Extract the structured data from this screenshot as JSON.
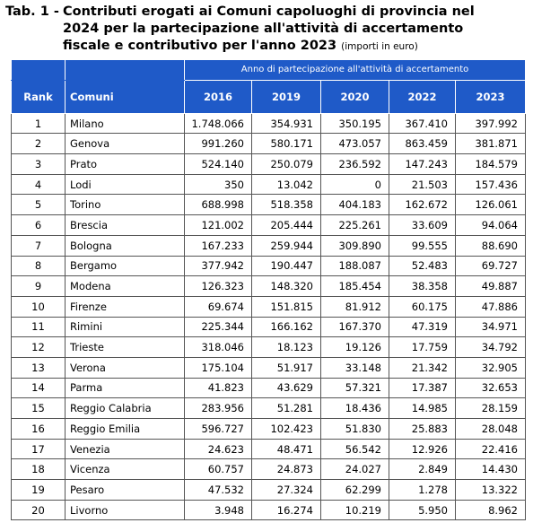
{
  "header": {
    "label": "Tab. 1 -",
    "title": "Contributi erogati ai Comuni capoluoghi di provincia nel 2024 per la partecipazione all'attività di accertamento fiscale e contributivo per l'anno 2023",
    "note": "(importi in euro)"
  },
  "table": {
    "group_header": "Anno di partecipazione all'attività di accertamento",
    "columns": [
      "Rank",
      "Comuni",
      "2016",
      "2019",
      "2020",
      "2022",
      "2023"
    ],
    "rows": [
      [
        "1",
        "Milano",
        "1.748.066",
        "354.931",
        "350.195",
        "367.410",
        "397.992"
      ],
      [
        "2",
        "Genova",
        "991.260",
        "580.171",
        "473.057",
        "863.459",
        "381.871"
      ],
      [
        "3",
        "Prato",
        "524.140",
        "250.079",
        "236.592",
        "147.243",
        "184.579"
      ],
      [
        "4",
        "Lodi",
        "350",
        "13.042",
        "0",
        "21.503",
        "157.436"
      ],
      [
        "5",
        "Torino",
        "688.998",
        "518.358",
        "404.183",
        "162.672",
        "126.061"
      ],
      [
        "6",
        "Brescia",
        "121.002",
        "205.444",
        "225.261",
        "33.609",
        "94.064"
      ],
      [
        "7",
        "Bologna",
        "167.233",
        "259.944",
        "309.890",
        "99.555",
        "88.690"
      ],
      [
        "8",
        "Bergamo",
        "377.942",
        "190.447",
        "188.087",
        "52.483",
        "69.727"
      ],
      [
        "9",
        "Modena",
        "126.323",
        "148.320",
        "185.454",
        "38.358",
        "49.887"
      ],
      [
        "10",
        "Firenze",
        "69.674",
        "151.815",
        "81.912",
        "60.175",
        "47.886"
      ],
      [
        "11",
        "Rimini",
        "225.344",
        "166.162",
        "167.370",
        "47.319",
        "34.971"
      ],
      [
        "12",
        "Trieste",
        "318.046",
        "18.123",
        "19.126",
        "17.759",
        "34.792"
      ],
      [
        "13",
        "Verona",
        "175.104",
        "51.917",
        "33.148",
        "21.342",
        "32.905"
      ],
      [
        "14",
        "Parma",
        "41.823",
        "43.629",
        "57.321",
        "17.387",
        "32.653"
      ],
      [
        "15",
        "Reggio Calabria",
        "283.956",
        "51.281",
        "18.436",
        "14.985",
        "28.159"
      ],
      [
        "16",
        "Reggio Emilia",
        "596.727",
        "102.423",
        "51.830",
        "25.883",
        "28.048"
      ],
      [
        "17",
        "Venezia",
        "24.623",
        "48.471",
        "56.542",
        "12.926",
        "22.416"
      ],
      [
        "18",
        "Vicenza",
        "60.757",
        "24.873",
        "24.027",
        "2.849",
        "14.430"
      ],
      [
        "19",
        "Pesaro",
        "47.532",
        "27.324",
        "62.299",
        "1.278",
        "13.322"
      ],
      [
        "20",
        "Livorno",
        "3.948",
        "16.274",
        "10.219",
        "5.950",
        "8.962"
      ]
    ]
  }
}
